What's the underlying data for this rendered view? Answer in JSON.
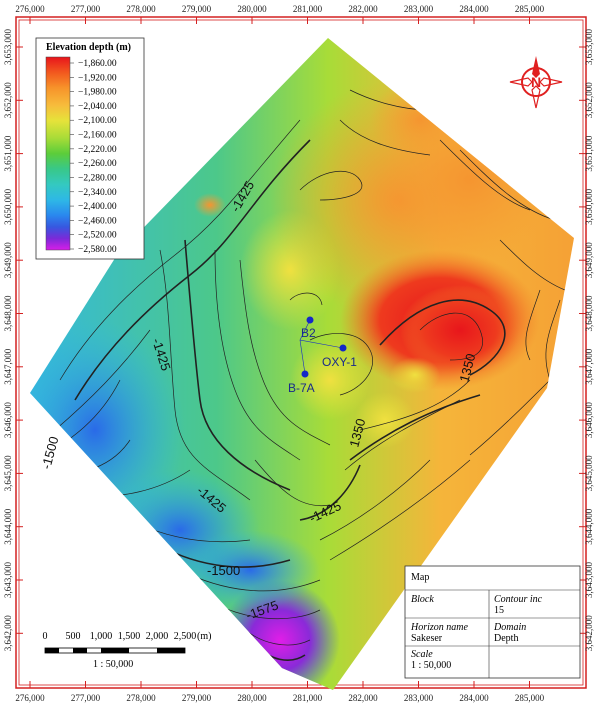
{
  "axes": {
    "x_ticks": [
      "276,000",
      "277,000",
      "278,000",
      "279,000",
      "280,000",
      "281,000",
      "282,000",
      "283,000",
      "284,000",
      "285,000"
    ],
    "y_ticks": [
      "3,653,000",
      "3,652,000",
      "3,651,000",
      "3,650,000",
      "3,649,000",
      "3,648,000",
      "3,647,000",
      "3,646,000",
      "3,645,000",
      "3,644,000",
      "3,643,000",
      "3,642,000"
    ]
  },
  "legend": {
    "title": "Elevation depth (m)",
    "entries": [
      {
        "label": "−1,860.00",
        "color": "#e8141c"
      },
      {
        "label": "−1,920.00",
        "color": "#f2581e"
      },
      {
        "label": "−1,980.00",
        "color": "#f7932a"
      },
      {
        "label": "−2,040.00",
        "color": "#f7bc3c"
      },
      {
        "label": "−2,100.00",
        "color": "#e6e33a"
      },
      {
        "label": "−2,160.00",
        "color": "#a8dc38"
      },
      {
        "label": "−2,220.00",
        "color": "#5ccd3a"
      },
      {
        "label": "−2,260.00",
        "color": "#38c888"
      },
      {
        "label": "−2,280.00",
        "color": "#34c9c0"
      },
      {
        "label": "−2,340.00",
        "color": "#2eb8e6"
      },
      {
        "label": "−2,400.00",
        "color": "#2a88ee"
      },
      {
        "label": "−2,460.00",
        "color": "#3658e0"
      },
      {
        "label": "−2,520.00",
        "color": "#7a2ad8"
      },
      {
        "label": "−2,580.00",
        "color": "#d81ee8"
      }
    ]
  },
  "contour_labels": [
    "-1425",
    "-1425",
    "-1425",
    "-1425",
    "-1500",
    "-1500",
    "-1575",
    "1350",
    "1350"
  ],
  "wells": [
    {
      "label": "B2"
    },
    {
      "label": "OXY-1"
    },
    {
      "label": "B-7A"
    }
  ],
  "north_arrow": {
    "label": "N",
    "icon": "north-arrow-icon",
    "color": "#e02020"
  },
  "scale_bar": {
    "ticks": [
      "0",
      "500",
      "1,000",
      "1,500",
      "2,000",
      "2,500"
    ],
    "unit": "(m)",
    "ratio": "1 : 50,000"
  },
  "info_box": {
    "title": "Map",
    "block_label": "Block",
    "contour_label": "Contour inc",
    "contour_value": "15",
    "horizon_label": "Horizon name",
    "horizon_value": "Sakeser",
    "domain_label": "Domain",
    "domain_value": "Depth",
    "scale_label": "Scale",
    "scale_value": "1 : 50,000"
  },
  "colors": {
    "frame_red": "#d42020",
    "well_dot": "#1428c8"
  }
}
